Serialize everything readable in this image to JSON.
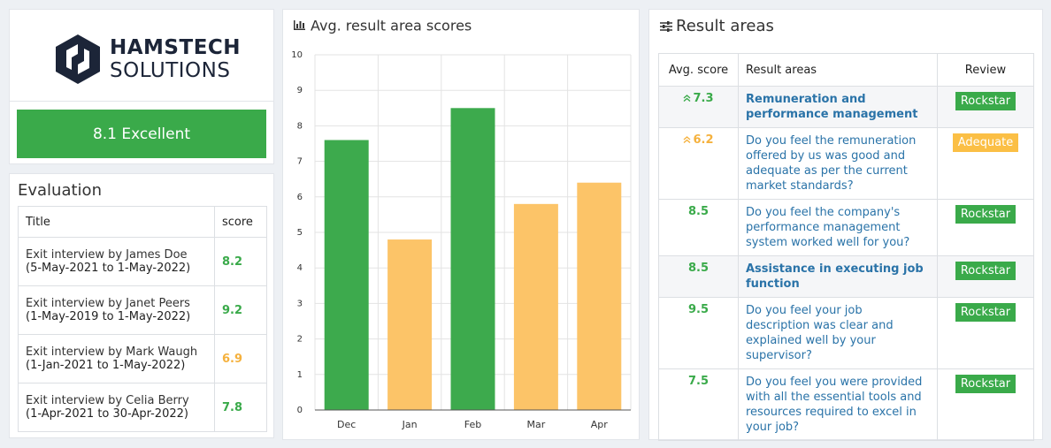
{
  "brand": {
    "name_top": "HAMSTECH",
    "name_bottom": "SOLUTIONS"
  },
  "overall": {
    "label": "8.1 Excellent",
    "color": "#3aaa4a"
  },
  "evaluation": {
    "title": "Evaluation",
    "columns": [
      "Title",
      "score"
    ],
    "rows": [
      {
        "name": "Exit interview by James Doe",
        "period": "(5-May-2021 to 1-May-2022)",
        "score": 8.2,
        "color": "#3aaa4a"
      },
      {
        "name": "Exit interview by Janet Peers",
        "period": "(1-May-2019 to 1-May-2022)",
        "score": 9.2,
        "color": "#3aaa4a"
      },
      {
        "name": "Exit interview by Mark Waugh",
        "period": "(1-Jan-2021 to 1-May-2022)",
        "score": 6.9,
        "color": "#f5b13d"
      },
      {
        "name": "Exit interview by Celia Berry",
        "period": "(1-Apr-2021 to 30-Apr-2022)",
        "score": 7.8,
        "color": "#3aaa4a"
      }
    ]
  },
  "chart_data": {
    "type": "bar",
    "title": "Avg. result area scores",
    "categories": [
      "Dec",
      "Jan",
      "Feb",
      "Mar",
      "Apr"
    ],
    "values": [
      7.6,
      4.8,
      8.5,
      5.8,
      6.4
    ],
    "colors": [
      "#3daa4d",
      "#fcc468",
      "#3daa4d",
      "#fcc468",
      "#fcc468"
    ],
    "ylim": [
      0,
      10
    ],
    "yticks": [
      0,
      1,
      2,
      3,
      4,
      5,
      6,
      7,
      8,
      9,
      10
    ],
    "grid": true
  },
  "result_areas": {
    "title": "Result areas",
    "columns": [
      "Avg. score",
      "Result areas",
      "Review"
    ],
    "rows": [
      {
        "score": 7.3,
        "trend": "up",
        "score_color": "#3aaa4a",
        "text": "Remuneration and performance management",
        "bold": true,
        "review": "Rockstar",
        "review_color": "#3aaa4a"
      },
      {
        "score": 6.2,
        "trend": "up",
        "score_color": "#f5b13d",
        "text": "Do you feel the remuneration offered by us was good and adequate as per the current market standards?",
        "bold": false,
        "review": "Adequate",
        "review_color": "#fbbf45"
      },
      {
        "score": 8.5,
        "score_color": "#3aaa4a",
        "text": "Do you feel the company's performance management system worked well for you?",
        "bold": false,
        "review": "Rockstar",
        "review_color": "#3aaa4a"
      },
      {
        "score": 8.5,
        "score_color": "#3aaa4a",
        "text": "Assistance in executing job function",
        "bold": true,
        "review": "Rockstar",
        "review_color": "#3aaa4a"
      },
      {
        "score": 9.5,
        "score_color": "#3aaa4a",
        "text": "Do you feel your job description was clear and explained well by your supervisor?",
        "bold": false,
        "review": "Rockstar",
        "review_color": "#3aaa4a"
      },
      {
        "score": 7.5,
        "score_color": "#3aaa4a",
        "text": "Do you feel you were provided with all the essential tools and resources required to excel in your job?",
        "bold": false,
        "review": "Rockstar",
        "review_color": "#3aaa4a"
      }
    ]
  }
}
